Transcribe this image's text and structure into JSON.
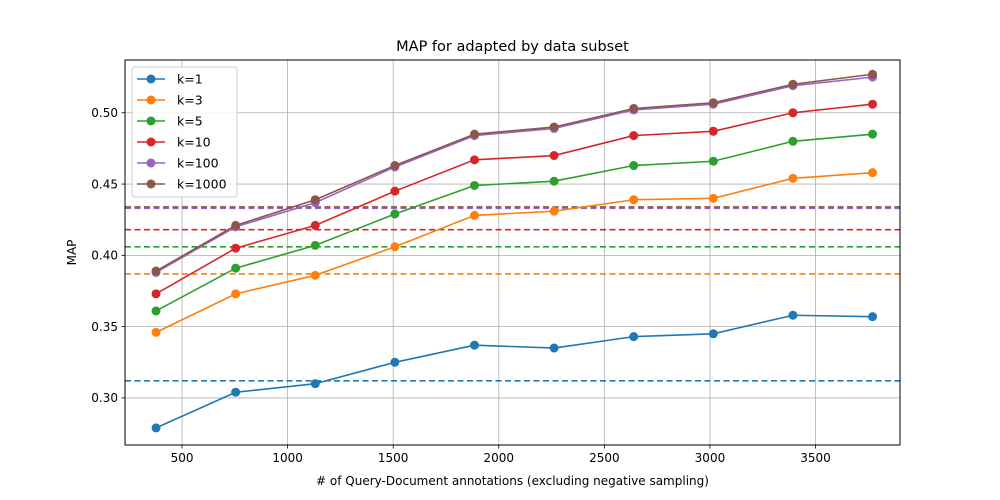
{
  "chart_data": {
    "type": "line",
    "title": "MAP for adapted by data subset",
    "xlabel": "# of Query-Document annotations (excluding negative sampling)",
    "ylabel": "MAP",
    "xlim": [
      230,
      3900
    ],
    "ylim": [
      0.267,
      0.537
    ],
    "xticks": [
      500,
      1000,
      1500,
      2000,
      2500,
      3000,
      3500
    ],
    "yticks": [
      0.3,
      0.35,
      0.4,
      0.45,
      0.5
    ],
    "ytick_labels": [
      "0.30",
      "0.35",
      "0.40",
      "0.45",
      "0.50"
    ],
    "grid": true,
    "legend_position": "upper-left",
    "x": [
      377,
      754,
      1131,
      1508,
      1885,
      2262,
      2639,
      3016,
      3393,
      3770
    ],
    "series": [
      {
        "name": "k=1",
        "color": "#1f77b4",
        "values": [
          0.279,
          0.304,
          0.31,
          0.325,
          0.337,
          0.335,
          0.343,
          0.345,
          0.358,
          0.357
        ],
        "baseline": 0.312
      },
      {
        "name": "k=3",
        "color": "#ff7f0e",
        "values": [
          0.346,
          0.373,
          0.386,
          0.406,
          0.428,
          0.431,
          0.439,
          0.44,
          0.454,
          0.458
        ],
        "baseline": 0.387
      },
      {
        "name": "k=5",
        "color": "#2ca02c",
        "values": [
          0.361,
          0.391,
          0.407,
          0.429,
          0.449,
          0.452,
          0.463,
          0.466,
          0.48,
          0.485
        ],
        "baseline": 0.406
      },
      {
        "name": "k=10",
        "color": "#d62728",
        "values": [
          0.373,
          0.405,
          0.421,
          0.445,
          0.467,
          0.47,
          0.484,
          0.487,
          0.5,
          0.506
        ],
        "baseline": 0.418
      },
      {
        "name": "k=100",
        "color": "#9467bd",
        "values": [
          0.388,
          0.42,
          0.437,
          0.462,
          0.484,
          0.489,
          0.502,
          0.506,
          0.519,
          0.525
        ],
        "baseline": 0.433
      },
      {
        "name": "k=1000",
        "color": "#8c564b",
        "values": [
          0.389,
          0.421,
          0.439,
          0.463,
          0.485,
          0.49,
          0.503,
          0.507,
          0.52,
          0.527
        ],
        "baseline": 0.434
      }
    ]
  }
}
